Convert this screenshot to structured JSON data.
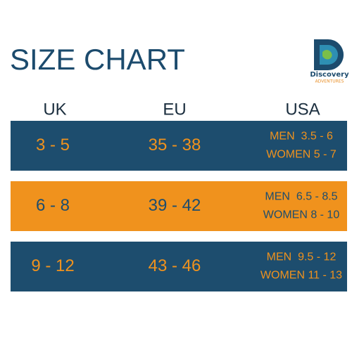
{
  "header": {
    "title": "SIZE CHART",
    "logo": {
      "brand": "Discovery",
      "sub": "ADVENTURES"
    }
  },
  "table": {
    "columns": [
      "UK",
      "EU",
      "USA"
    ],
    "rows": [
      {
        "uk": "3 - 5",
        "eu": "35 - 38",
        "usa": [
          "MEN  3.5 - 6",
          "WOMEN 5 - 7"
        ]
      },
      {
        "uk": "6 - 8",
        "eu": "39 - 42",
        "usa": [
          "MEN  6.5 - 8.5",
          "WOMEN 8 - 10"
        ]
      },
      {
        "uk": "9 - 12",
        "eu": "43 - 46",
        "usa": [
          "MEN  9.5 - 12",
          "WOMEN 11 - 13"
        ]
      }
    ]
  }
}
